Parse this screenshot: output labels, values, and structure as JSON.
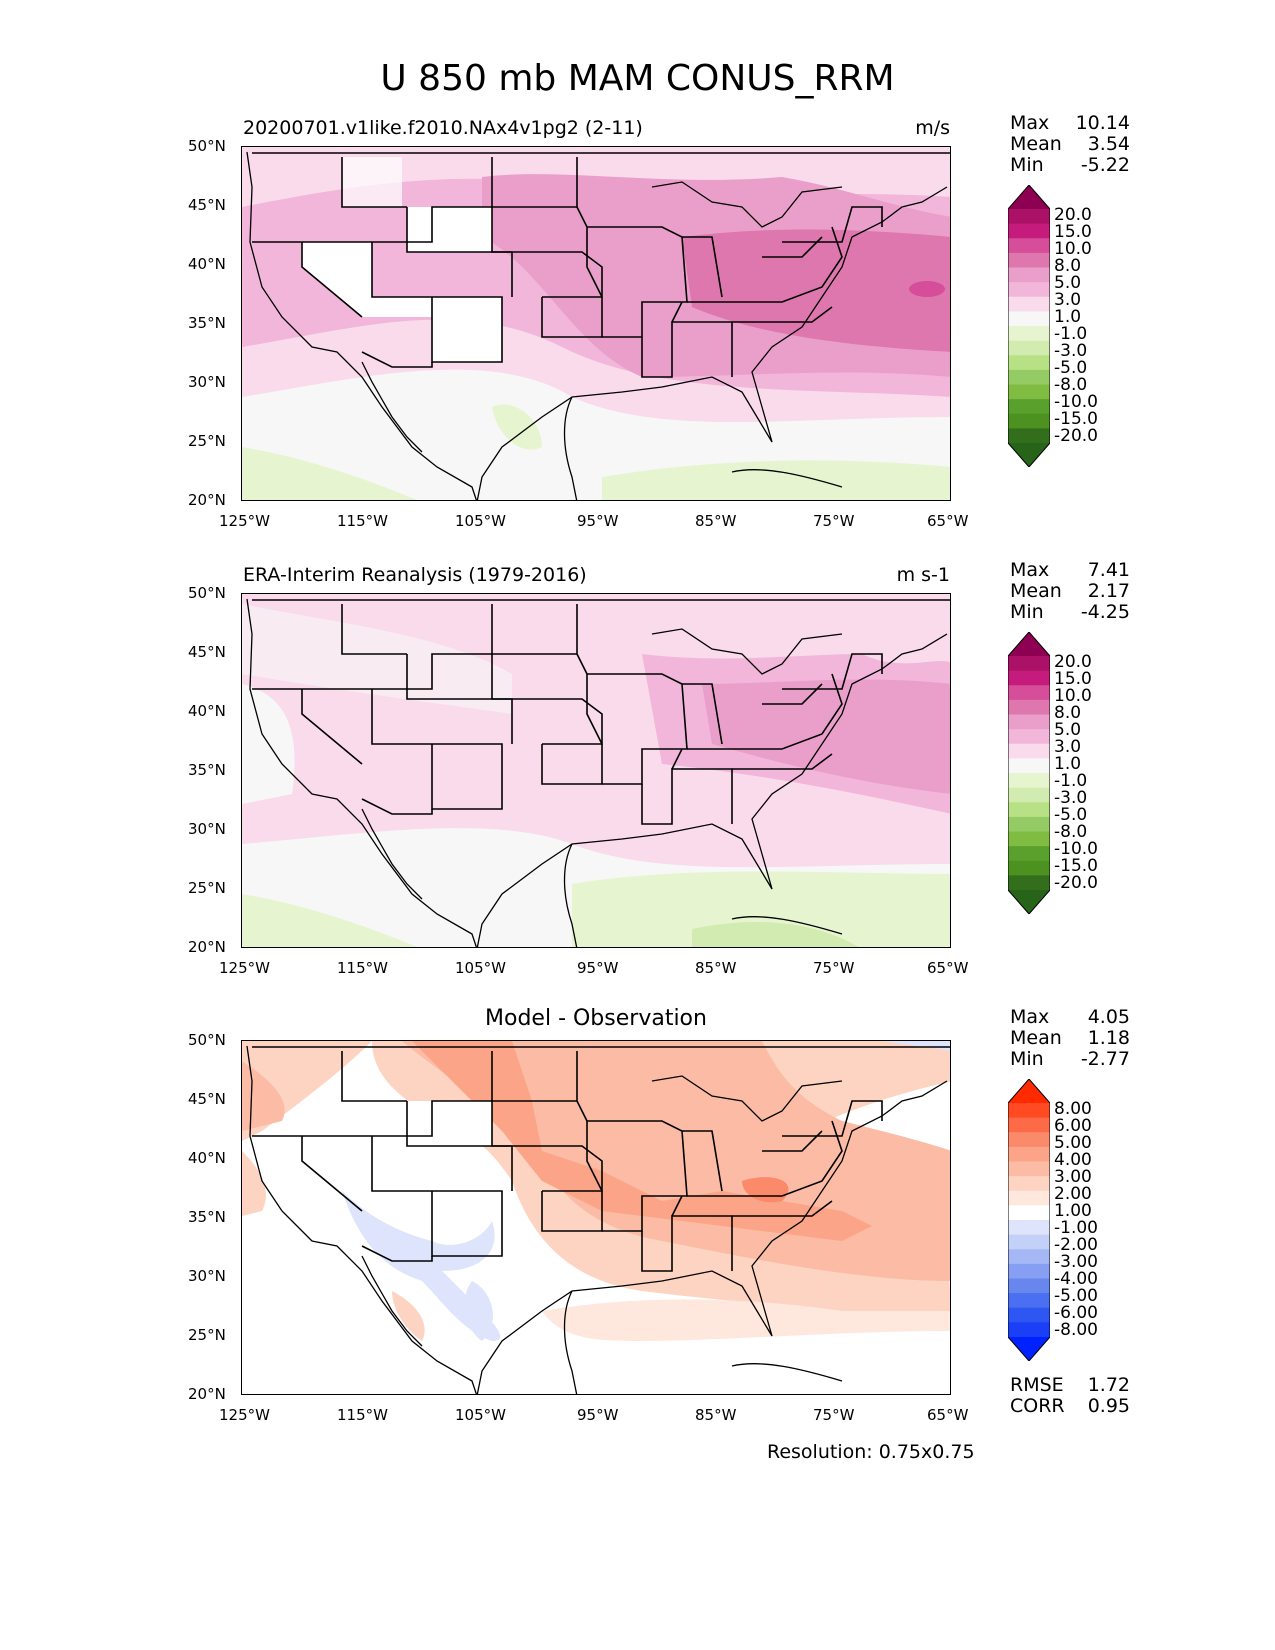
{
  "figure": {
    "title": "U 850 mb MAM CONUS_RRM",
    "resolution": "Resolution: 0.75x0.75"
  },
  "axes": {
    "lat_ticks": [
      "50°N",
      "45°N",
      "40°N",
      "35°N",
      "30°N",
      "25°N",
      "20°N"
    ],
    "lon_ticks": [
      "125°W",
      "115°W",
      "105°W",
      "95°W",
      "85°W",
      "75°W",
      "65°W"
    ]
  },
  "panels": [
    {
      "title": "20200701.v1like.f2010.NAx4v1pg2 (2-11)",
      "units": "m/s",
      "stats": {
        "max_label": "Max",
        "max": "10.14",
        "mean_label": "Mean",
        "mean": "3.54",
        "min_label": "Min",
        "min": "-5.22"
      },
      "colorbar": {
        "labels": [
          "20.0",
          "15.0",
          "10.0",
          "8.0",
          "5.0",
          "3.0",
          "1.0",
          "-1.0",
          "-3.0",
          "-5.0",
          "-8.0",
          "-10.0",
          "-15.0",
          "-20.0"
        ],
        "colors": [
          "#8e0152",
          "#ab1267",
          "#c51b7d",
          "#d64d9a",
          "#de77ae",
          "#ea9fcb",
          "#f1b6da",
          "#f9dbec",
          "#f7f7f7",
          "#e6f5d0",
          "#d2ebb0",
          "#b8e186",
          "#95cb64",
          "#7fbc41",
          "#5aa02c",
          "#4d9221",
          "#336e1c",
          "#276419"
        ]
      }
    },
    {
      "title": "ERA-Interim Reanalysis (1979-2016)",
      "units": "m s-1",
      "stats": {
        "max_label": "Max",
        "max": "7.41",
        "mean_label": "Mean",
        "mean": "2.17",
        "min_label": "Min",
        "min": "-4.25"
      },
      "colorbar": {
        "labels": [
          "20.0",
          "15.0",
          "10.0",
          "8.0",
          "5.0",
          "3.0",
          "1.0",
          "-1.0",
          "-3.0",
          "-5.0",
          "-8.0",
          "-10.0",
          "-15.0",
          "-20.0"
        ],
        "colors": [
          "#8e0152",
          "#ab1267",
          "#c51b7d",
          "#d64d9a",
          "#de77ae",
          "#ea9fcb",
          "#f1b6da",
          "#f9dbec",
          "#f7f7f7",
          "#e6f5d0",
          "#d2ebb0",
          "#b8e186",
          "#95cb64",
          "#7fbc41",
          "#5aa02c",
          "#4d9221",
          "#336e1c",
          "#276419"
        ]
      }
    },
    {
      "title": "Model - Observation",
      "units": "",
      "stats": {
        "max_label": "Max",
        "max": "4.05",
        "mean_label": "Mean",
        "mean": "1.18",
        "min_label": "Min",
        "min": "-2.77"
      },
      "extra_stats": {
        "rmse_label": "RMSE",
        "rmse": "1.72",
        "corr_label": "CORR",
        "corr": "0.95"
      },
      "colorbar": {
        "labels": [
          "8.00",
          "6.00",
          "5.00",
          "4.00",
          "3.00",
          "2.00",
          "1.00",
          "-1.00",
          "-2.00",
          "-3.00",
          "-4.00",
          "-5.00",
          "-6.00",
          "-8.00"
        ],
        "colors": [
          "#ff2a00",
          "#ff4a22",
          "#fd6a48",
          "#fb8a6a",
          "#fca487",
          "#fcbba4",
          "#fdd3c2",
          "#fee8de",
          "#ffffff",
          "#dde4fb",
          "#c3d0f8",
          "#a5b8f5",
          "#879ff2",
          "#6787ef",
          "#4a6ff0",
          "#2d56f2",
          "#1a3ff6",
          "#0022ff"
        ]
      }
    }
  ],
  "map_fill_colors": {
    "panel1": {
      "bg": "#f7f7f7",
      "pale": "#f9dbec",
      "light": "#f1b6da",
      "mid": "#ea9fcb",
      "strong": "#de77ae",
      "core": "#d64d9a",
      "green": "#e6f5d0",
      "green2": "#d2ebb0"
    },
    "panel2": {
      "bg": "#f7f7f7",
      "pale": "#f9dbec",
      "light": "#f1b6da",
      "mid": "#ea9fcb",
      "green": "#e6f5d0",
      "green2": "#d2ebb0"
    },
    "panel3": {
      "bg": "#ffffff",
      "pale": "#fee8de",
      "light": "#fdd3c2",
      "mid": "#fcbba4",
      "strong": "#fca487",
      "core": "#fb8a6a",
      "blue": "#dde4fb"
    }
  }
}
